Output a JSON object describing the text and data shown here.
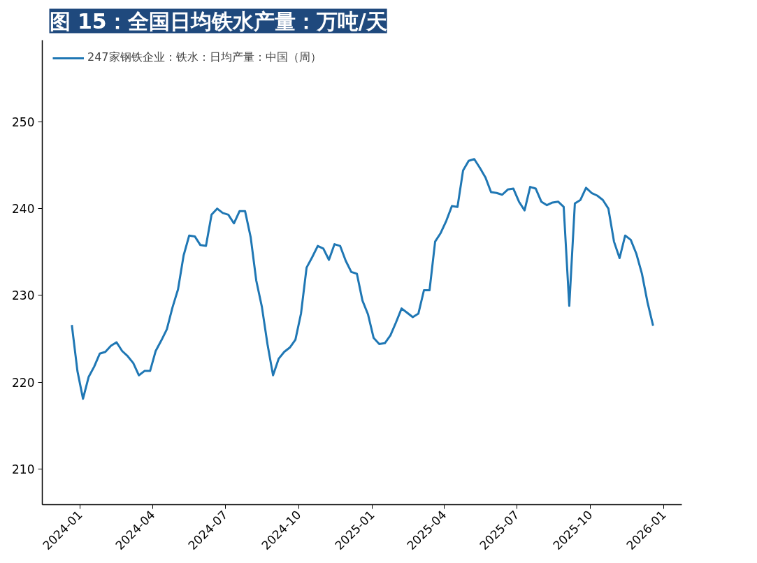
{
  "chart_data": {
    "type": "line",
    "title": "图 15：全国日均铁水产量：万吨/天",
    "x": [
      "2023-12-22",
      "2023-12-29",
      "2024-01-05",
      "2024-01-12",
      "2024-01-19",
      "2024-01-26",
      "2024-02-02",
      "2024-02-09",
      "2024-02-16",
      "2024-02-23",
      "2024-03-01",
      "2024-03-08",
      "2024-03-15",
      "2024-03-22",
      "2024-03-29",
      "2024-04-05",
      "2024-04-12",
      "2024-04-19",
      "2024-04-26",
      "2024-05-03",
      "2024-05-10",
      "2024-05-17",
      "2024-05-24",
      "2024-05-31",
      "2024-06-07",
      "2024-06-14",
      "2024-06-21",
      "2024-06-28",
      "2024-07-05",
      "2024-07-12",
      "2024-07-19",
      "2024-07-26",
      "2024-08-02",
      "2024-08-09",
      "2024-08-16",
      "2024-08-23",
      "2024-08-30",
      "2024-09-06",
      "2024-09-13",
      "2024-09-20",
      "2024-09-27",
      "2024-10-04",
      "2024-10-11",
      "2024-10-18",
      "2024-10-25",
      "2024-11-01",
      "2024-11-08",
      "2024-11-15",
      "2024-11-22",
      "2024-11-29",
      "2024-12-06",
      "2024-12-13",
      "2024-12-20",
      "2024-12-27",
      "2025-01-03",
      "2025-01-10",
      "2025-01-17",
      "2025-01-24",
      "2025-01-31",
      "2025-02-07",
      "2025-02-14",
      "2025-02-21",
      "2025-02-28",
      "2025-03-07",
      "2025-03-14",
      "2025-03-21",
      "2025-03-28",
      "2025-04-04",
      "2025-04-11",
      "2025-04-18",
      "2025-04-25",
      "2025-05-02",
      "2025-05-09",
      "2025-05-16",
      "2025-05-23",
      "2025-05-30",
      "2025-06-06",
      "2025-06-13",
      "2025-06-20",
      "2025-06-27",
      "2025-07-04",
      "2025-07-11",
      "2025-07-18",
      "2025-07-25",
      "2025-08-01",
      "2025-08-08",
      "2025-08-15",
      "2025-08-22",
      "2025-08-29",
      "2025-09-05",
      "2025-09-12",
      "2025-09-19",
      "2025-09-26",
      "2025-10-03",
      "2025-10-10",
      "2025-10-17",
      "2025-10-24",
      "2025-10-31",
      "2025-11-07",
      "2025-11-14",
      "2025-11-21",
      "2025-11-28",
      "2025-12-05",
      "2025-12-12",
      "2025-12-19"
    ],
    "series": [
      {
        "name": "247家钢铁企业：铁水：日均产量：中国（周）",
        "color": "#1f77b4",
        "values": [
          226.6,
          221.3,
          218.1,
          220.6,
          221.8,
          223.3,
          223.5,
          224.2,
          224.6,
          223.6,
          223.0,
          222.2,
          220.8,
          221.3,
          221.3,
          223.6,
          224.8,
          226.1,
          228.6,
          230.7,
          234.6,
          236.9,
          236.8,
          235.8,
          235.7,
          239.3,
          240.0,
          239.5,
          239.3,
          238.3,
          239.7,
          239.7,
          236.7,
          231.7,
          228.7,
          224.4,
          220.8,
          222.7,
          223.5,
          224.0,
          224.9,
          227.9,
          233.2,
          234.4,
          235.7,
          235.4,
          234.1,
          235.9,
          235.7,
          234.0,
          232.7,
          232.5,
          229.4,
          227.8,
          225.1,
          224.4,
          224.5,
          225.4,
          226.9,
          228.5,
          228.0,
          227.5,
          227.9,
          230.6,
          230.6,
          236.2,
          237.2,
          238.6,
          240.3,
          240.2,
          244.4,
          245.5,
          245.7,
          244.7,
          243.6,
          241.9,
          241.8,
          241.6,
          242.2,
          242.3,
          240.8,
          239.8,
          242.5,
          242.3,
          240.8,
          240.4,
          240.7,
          240.8,
          240.2,
          228.8,
          240.6,
          241.0,
          242.4,
          241.8,
          241.5,
          241.0,
          240.0,
          236.2,
          234.3,
          236.9,
          236.4,
          234.8,
          232.5,
          229.2,
          226.5
        ]
      }
    ],
    "xlim": [
      "2023-11-15",
      "2026-01-24"
    ],
    "ylim": [
      205.9,
      259.4
    ],
    "xticks": [
      "2024-01",
      "2024-04",
      "2024-07",
      "2024-10",
      "2025-01",
      "2025-04",
      "2025-07",
      "2025-10",
      "2026-01"
    ],
    "yticks": [
      210,
      220,
      230,
      240,
      250
    ],
    "grid": false,
    "legend": "top left",
    "marker": "none",
    "line_style": "solid"
  }
}
